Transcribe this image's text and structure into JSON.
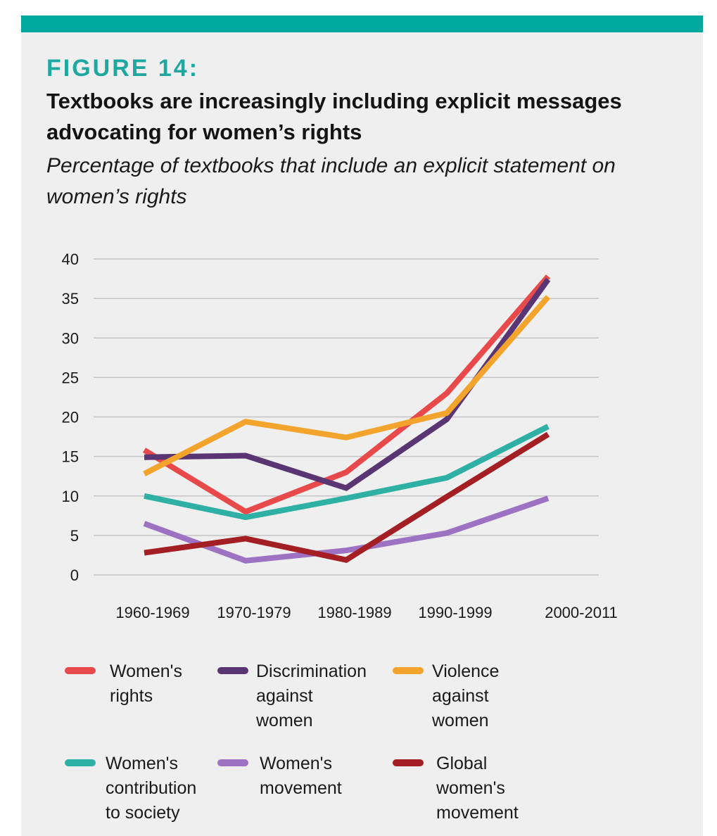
{
  "figure_label": "FIGURE 14:",
  "title": "Textbooks are increasingly including explicit messages advocating for women’s rights",
  "subtitle": "Percentage of textbooks that include an explicit statement on women’s rights",
  "chart_data": {
    "type": "line",
    "categories": [
      "1960-1969",
      "1970-1979",
      "1980-1989",
      "1990-1999",
      "2000-2011"
    ],
    "ylim": [
      0,
      40
    ],
    "yticks": [
      "0",
      "5",
      "10",
      "15",
      "20",
      "25",
      "30",
      "35",
      "40"
    ],
    "grid": true,
    "legend_position": "bottom",
    "series": [
      {
        "name": "Women's rights",
        "color": "#e84a4b",
        "values": [
          15.8,
          8.0,
          13.0,
          23.0,
          37.8
        ]
      },
      {
        "name": "Discrimination against women",
        "color": "#5a3573",
        "values": [
          14.9,
          15.1,
          11.0,
          19.7,
          37.4
        ]
      },
      {
        "name": "Violence against women",
        "color": "#f2a42c",
        "values": [
          12.8,
          19.4,
          17.4,
          20.5,
          35.2
        ]
      },
      {
        "name": "Women's contribution to society",
        "color": "#2fb0a4",
        "values": [
          10.0,
          7.3,
          9.7,
          12.3,
          18.8
        ]
      },
      {
        "name": "Women's movement",
        "color": "#9d72c3",
        "values": [
          6.5,
          1.8,
          3.1,
          5.3,
          9.7
        ]
      },
      {
        "name": "Global women's movement",
        "color": "#a31f23",
        "values": [
          2.8,
          4.6,
          1.9,
          9.9,
          17.8
        ]
      }
    ]
  },
  "legend_display": [
    "Women's\nrights",
    "Discrimination\nagainst women",
    "Violence\nagainst\nwomen",
    "Women's\ncontribution\nto society",
    "Women's\nmovement",
    "Global\nwomen's\nmovement"
  ]
}
